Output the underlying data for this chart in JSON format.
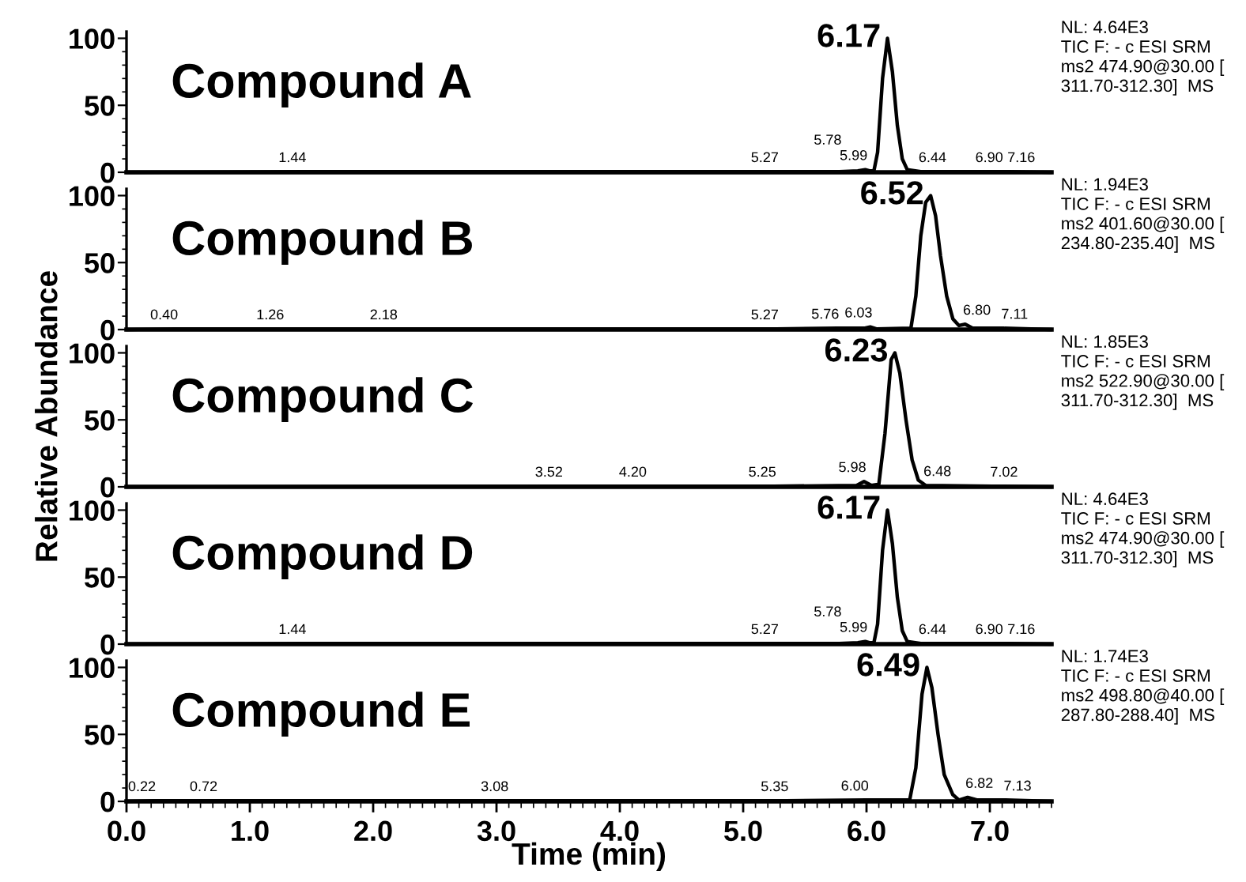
{
  "chart_data": [
    {
      "type": "line",
      "title": "Compound A",
      "xlim": [
        0,
        7.5
      ],
      "ylim": [
        0,
        105
      ],
      "yticks": [
        0,
        50,
        100
      ],
      "tick_labels": "y",
      "series": [
        {
          "color": "#000000",
          "x": [
            0,
            1.44,
            5.27,
            5.78,
            5.93,
            5.99,
            6.03,
            6.06,
            6.09,
            6.13,
            6.17,
            6.21,
            6.25,
            6.29,
            6.33,
            6.44,
            6.9,
            7.16,
            7.5
          ],
          "values": [
            0,
            0.5,
            0.5,
            0.5,
            1,
            2,
            1,
            1,
            15,
            70,
            100,
            75,
            35,
            10,
            2,
            0.5,
            0.5,
            0.5,
            0
          ]
        }
      ],
      "annotations": [
        {
          "text": "6.17",
          "x": 6.17,
          "y": 100
        },
        {
          "text": "1.44",
          "x": 1.44,
          "y": 0.5
        },
        {
          "text": "5.27",
          "x": 5.27,
          "y": 0.5
        },
        {
          "text": "5.78",
          "x": 5.78,
          "y": 0.5
        },
        {
          "text": "5.99",
          "x": 5.99,
          "y": 2
        },
        {
          "text": "6.44",
          "x": 6.44,
          "y": 0.5
        },
        {
          "text": "6.90",
          "x": 6.9,
          "y": 0.5
        },
        {
          "text": "7.16",
          "x": 7.16,
          "y": 0.5
        },
        "NL: 4.64E3\nTIC F: - c ESI SRM\nms2 474.90@30.00 [\n311.70-312.30]  MS"
      ]
    },
    {
      "type": "line",
      "title": "Compound B",
      "xlim": [
        0,
        7.5
      ],
      "ylim": [
        0,
        105
      ],
      "yticks": [
        0,
        50,
        100
      ],
      "tick_labels": "y",
      "series": [
        {
          "color": "#000000",
          "x": [
            0,
            0.4,
            1.26,
            2.18,
            5.27,
            5.76,
            5.98,
            6.03,
            6.08,
            6.36,
            6.4,
            6.44,
            6.48,
            6.52,
            6.56,
            6.6,
            6.65,
            6.7,
            6.75,
            6.8,
            6.86,
            7.11,
            7.5
          ],
          "values": [
            0,
            0.5,
            0.5,
            0.5,
            0.5,
            1,
            1,
            2,
            0.5,
            1,
            25,
            70,
            95,
            100,
            85,
            55,
            25,
            8,
            3,
            4,
            1,
            1,
            0
          ]
        }
      ],
      "annotations": [
        {
          "text": "6.52",
          "x": 6.52,
          "y": 100
        },
        {
          "text": "0.40",
          "x": 0.4,
          "y": 0.5
        },
        {
          "text": "1.26",
          "x": 1.26,
          "y": 0.5
        },
        {
          "text": "2.18",
          "x": 2.18,
          "y": 0.5
        },
        {
          "text": "5.27",
          "x": 5.27,
          "y": 0.5
        },
        {
          "text": "5.76",
          "x": 5.76,
          "y": 1
        },
        {
          "text": "6.03",
          "x": 6.03,
          "y": 2
        },
        {
          "text": "6.80",
          "x": 6.8,
          "y": 4
        },
        {
          "text": "7.11",
          "x": 7.11,
          "y": 1
        },
        "NL: 1.94E3\nTIC F: - c ESI SRM\nms2 401.60@30.00 [\n234.80-235.40]  MS"
      ]
    },
    {
      "type": "line",
      "title": "Compound C",
      "ylabel": "Relative Abundance",
      "xlim": [
        0,
        7.5
      ],
      "ylim": [
        0,
        105
      ],
      "yticks": [
        0,
        50,
        100
      ],
      "tick_labels": "y",
      "series": [
        {
          "color": "#000000",
          "x": [
            0,
            3.52,
            4.2,
            5.25,
            5.92,
            5.98,
            6.04,
            6.1,
            6.15,
            6.2,
            6.23,
            6.27,
            6.32,
            6.37,
            6.42,
            6.48,
            7.02,
            7.5
          ],
          "values": [
            0,
            0.5,
            0.5,
            0.5,
            1,
            4,
            1,
            2,
            40,
            95,
            100,
            85,
            50,
            20,
            5,
            1,
            0.5,
            0
          ]
        }
      ],
      "annotations": [
        {
          "text": "6.23",
          "x": 6.23,
          "y": 100
        },
        {
          "text": "3.52",
          "x": 3.52,
          "y": 0.5
        },
        {
          "text": "4.20",
          "x": 4.2,
          "y": 0.5
        },
        {
          "text": "5.25",
          "x": 5.25,
          "y": 0.5
        },
        {
          "text": "5.98",
          "x": 5.98,
          "y": 4
        },
        {
          "text": "6.48",
          "x": 6.48,
          "y": 1
        },
        {
          "text": "7.02",
          "x": 7.02,
          "y": 0.5
        },
        "NL: 1.85E3\nTIC F: - c ESI SRM\nms2 522.90@30.00 [\n311.70-312.30]  MS"
      ]
    },
    {
      "type": "line",
      "title": "Compound D",
      "xlim": [
        0,
        7.5
      ],
      "ylim": [
        0,
        105
      ],
      "yticks": [
        0,
        50,
        100
      ],
      "tick_labels": "y",
      "series": [
        {
          "color": "#000000",
          "x": [
            0,
            1.44,
            5.27,
            5.78,
            5.93,
            5.99,
            6.03,
            6.06,
            6.09,
            6.13,
            6.17,
            6.21,
            6.25,
            6.29,
            6.33,
            6.44,
            6.9,
            7.16,
            7.5
          ],
          "values": [
            0,
            0.5,
            0.5,
            0.5,
            1,
            2,
            1,
            1,
            15,
            70,
            100,
            75,
            35,
            10,
            2,
            0.5,
            0.5,
            0.5,
            0
          ]
        }
      ],
      "annotations": [
        {
          "text": "6.17",
          "x": 6.17,
          "y": 100
        },
        {
          "text": "1.44",
          "x": 1.44,
          "y": 0.5
        },
        {
          "text": "5.27",
          "x": 5.27,
          "y": 0.5
        },
        {
          "text": "5.78",
          "x": 5.78,
          "y": 0.5
        },
        {
          "text": "5.99",
          "x": 5.99,
          "y": 2
        },
        {
          "text": "6.44",
          "x": 6.44,
          "y": 0.5
        },
        {
          "text": "6.90",
          "x": 6.9,
          "y": 0.5
        },
        {
          "text": "7.16",
          "x": 7.16,
          "y": 0.5
        },
        "NL: 4.64E3\nTIC F: - c ESI SRM\nms2 474.90@30.00 [\n311.70-312.30]  MS"
      ]
    },
    {
      "type": "line",
      "title": "Compound E",
      "xlabel": "Time (min)",
      "xlim": [
        0,
        7.5
      ],
      "ylim": [
        0,
        105
      ],
      "yticks": [
        0,
        50,
        100
      ],
      "xticks": [
        {
          "value": 0,
          "label": "0.0"
        },
        {
          "value": 1,
          "label": "1.0"
        },
        {
          "value": 2,
          "label": "2.0"
        },
        {
          "value": 3,
          "label": "3.0"
        },
        {
          "value": 4,
          "label": "4.0"
        },
        {
          "value": 5,
          "label": "5.0"
        },
        {
          "value": 6,
          "label": "6.0"
        },
        {
          "value": 7,
          "label": "7.0"
        }
      ],
      "series": [
        {
          "color": "#000000",
          "x": [
            0,
            0.22,
            0.72,
            3.08,
            5.35,
            6.0,
            6.35,
            6.4,
            6.45,
            6.49,
            6.53,
            6.58,
            6.63,
            6.7,
            6.75,
            6.82,
            6.9,
            7.13,
            7.5
          ],
          "values": [
            0,
            0.5,
            0.5,
            0.5,
            0.5,
            1,
            1,
            25,
            80,
            100,
            85,
            50,
            20,
            5,
            1,
            3,
            1,
            1,
            0
          ]
        }
      ],
      "annotations": [
        {
          "text": "6.49",
          "x": 6.49,
          "y": 100
        },
        {
          "text": "0.22",
          "x": 0.22,
          "y": 0.5
        },
        {
          "text": "0.72",
          "x": 0.72,
          "y": 0.5
        },
        {
          "text": "3.08",
          "x": 3.08,
          "y": 0.5
        },
        {
          "text": "5.35",
          "x": 5.35,
          "y": 0.5
        },
        {
          "text": "6.00",
          "x": 6.0,
          "y": 1
        },
        {
          "text": "6.82",
          "x": 6.82,
          "y": 3
        },
        {
          "text": "7.13",
          "x": 7.13,
          "y": 1
        },
        "NL: 1.74E3\nTIC F: - c ESI SRM\nms2 498.80@40.00 [\n287.80-288.40]  MS"
      ]
    }
  ]
}
